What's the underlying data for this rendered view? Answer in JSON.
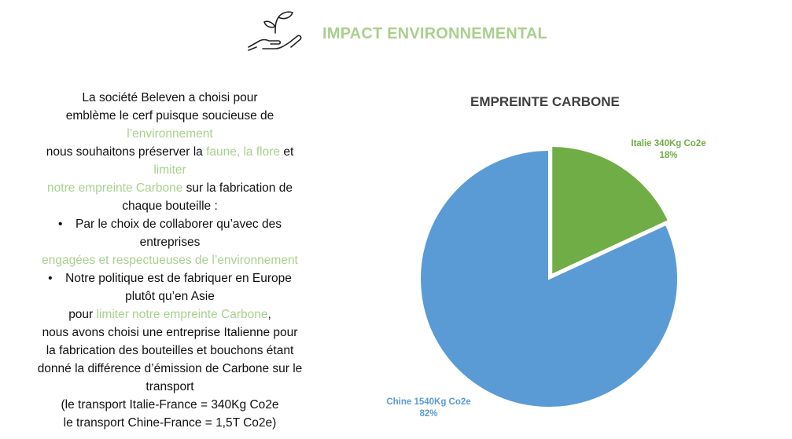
{
  "header": {
    "title": "IMPACT ENVIRONNEMENTAL",
    "icon": "plant-in-hand-icon",
    "accent_color": "#a9d08e"
  },
  "text": {
    "p1a": "La société Beleven a choisi pour",
    "p1b": "emblème le cerf puisque soucieuse de",
    "p1c": "l’environnement",
    "p2a": "nous souhaitons préserver la ",
    "p2b": "faune, la flore",
    "p2c": " et",
    "p2d": "limiter",
    "p3a": "notre empreinte Carbone",
    "p3b": " sur la fabrication de",
    "p3c": "chaque bouteille :",
    "b1a": "Par le choix de collaborer qu’avec des",
    "b1b": "entreprises",
    "b1c": "engagées et respectueuses de l’environnement",
    "b2a": "Notre politique est de fabriquer en Europe",
    "b2b": "plutôt qu’en Asie",
    "p4a": "pour ",
    "p4b": "limiter notre empreinte Carbone",
    "p4c": ",",
    "p5": "nous avons choisi une entreprise Italienne pour",
    "p6": "la fabrication des bouteilles et bouchons étant",
    "p7": "donné la différence d’émission de Carbone sur le",
    "p8": "transport",
    "p9": "(le transport Italie-France = 340Kg Co2e",
    "p10": "le transport Chine-France = 1,5T Co2e)",
    "bullet": "•"
  },
  "chart_data": {
    "type": "pie",
    "title": "EMPREINTE CARBONE",
    "slices": [
      {
        "label": "Italie 340Kg Co2e",
        "value": 340,
        "percent": "18%",
        "color": "#70ad47"
      },
      {
        "label": "Chine 1540Kg Co2e",
        "value": 1540,
        "percent": "82%",
        "color": "#5b9bd5"
      }
    ]
  }
}
